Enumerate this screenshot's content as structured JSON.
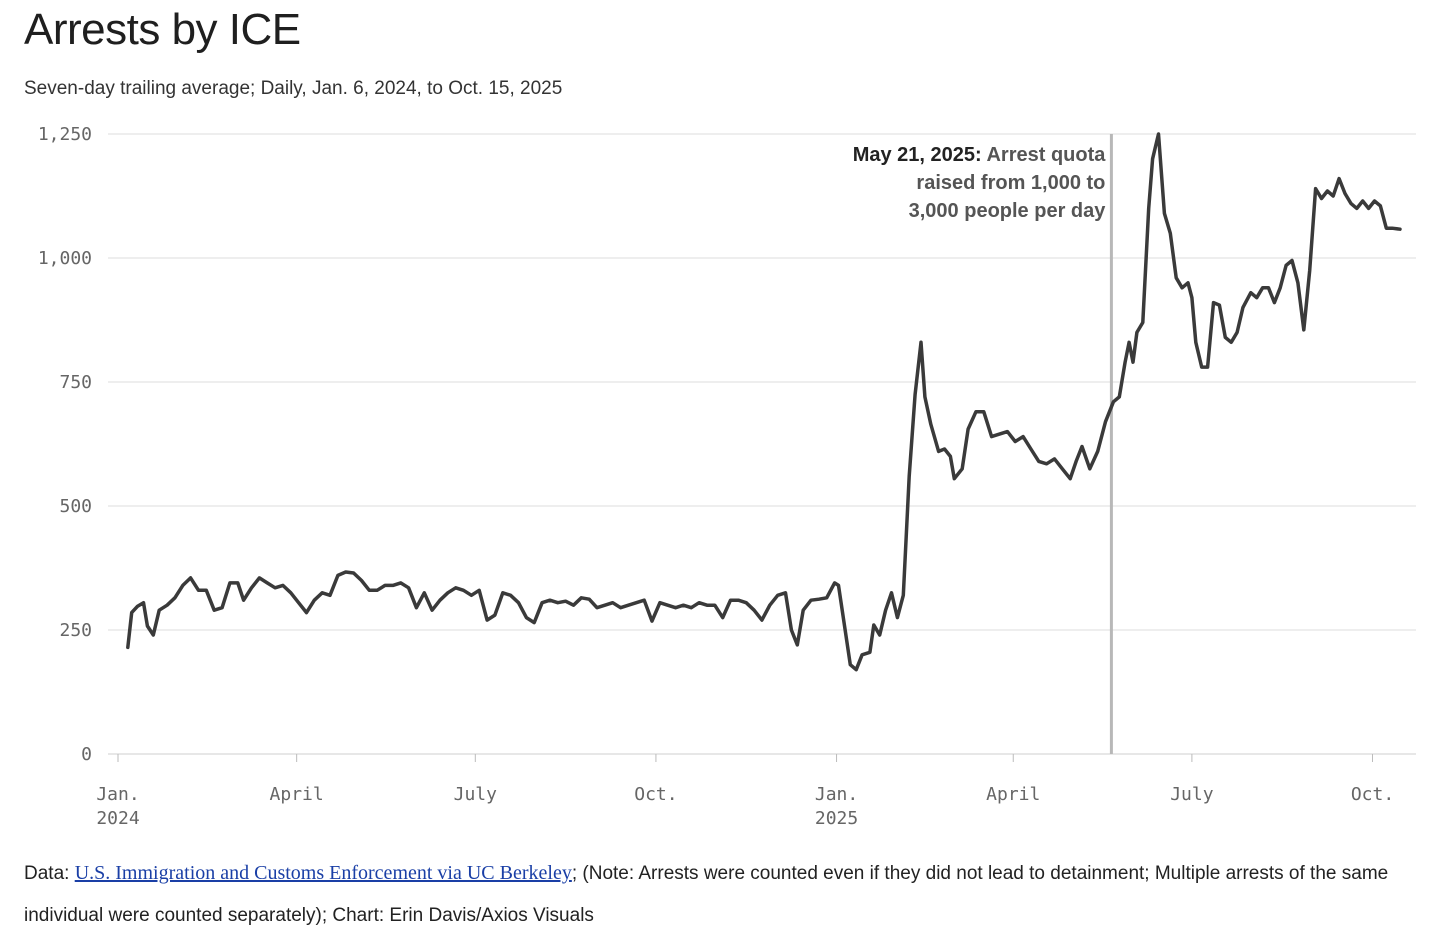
{
  "title": "Arrests by ICE",
  "subtitle": "Seven-day trailing average; Daily, Jan. 6, 2024, to Oct. 15, 2025",
  "footer": {
    "data_prefix": "Data: ",
    "source_link": "U.S. Immigration and Customs Enforcement via UC Berkeley",
    "note": "; (Note: Arrests were counted even if they did not lead to detainment; Multiple arrests of the same individual were counted separately); Chart: Erin Davis/Axios Visuals"
  },
  "colors": {
    "line": "#3a3a3a",
    "grid": "#dcdcdc",
    "marker": "#b8b8b8",
    "axis": "#cfcfcf"
  },
  "chart_data": {
    "type": "line",
    "title": "Arrests by ICE",
    "xlabel": "",
    "ylabel": "",
    "ylim": [
      0,
      1250
    ],
    "yticks": [
      0,
      250,
      500,
      750,
      1000,
      1250
    ],
    "ytick_labels": [
      "0",
      "250",
      "500",
      "750",
      "1,000",
      "1,250"
    ],
    "x_domain": [
      "2024-01-01",
      "2025-10-15"
    ],
    "xticks": [
      {
        "date": "2024-01-01",
        "label": "Jan.",
        "label2": "2024"
      },
      {
        "date": "2024-04-01",
        "label": "April",
        "label2": ""
      },
      {
        "date": "2024-07-01",
        "label": "July",
        "label2": ""
      },
      {
        "date": "2024-10-01",
        "label": "Oct.",
        "label2": ""
      },
      {
        "date": "2025-01-01",
        "label": "Jan.",
        "label2": "2025"
      },
      {
        "date": "2025-04-01",
        "label": "April",
        "label2": ""
      },
      {
        "date": "2025-07-01",
        "label": "July",
        "label2": ""
      },
      {
        "date": "2025-10-01",
        "label": "Oct.",
        "label2": ""
      }
    ],
    "annotation": {
      "date": "2025-05-21",
      "bold": "May 21, 2025:",
      "lines": [
        "Arrest quota",
        "raised from 1,000 to",
        "3,000 people per day"
      ]
    },
    "series": [
      {
        "name": "Arrests (7-day trailing avg)",
        "points": [
          [
            "2024-01-06",
            215
          ],
          [
            "2024-01-08",
            285
          ],
          [
            "2024-01-11",
            298
          ],
          [
            "2024-01-14",
            305
          ],
          [
            "2024-01-16",
            258
          ],
          [
            "2024-01-19",
            240
          ],
          [
            "2024-01-22",
            290
          ],
          [
            "2024-01-26",
            300
          ],
          [
            "2024-01-30",
            315
          ],
          [
            "2024-02-03",
            340
          ],
          [
            "2024-02-07",
            355
          ],
          [
            "2024-02-11",
            330
          ],
          [
            "2024-02-15",
            330
          ],
          [
            "2024-02-19",
            290
          ],
          [
            "2024-02-23",
            295
          ],
          [
            "2024-02-27",
            345
          ],
          [
            "2024-03-02",
            345
          ],
          [
            "2024-03-05",
            310
          ],
          [
            "2024-03-09",
            335
          ],
          [
            "2024-03-13",
            355
          ],
          [
            "2024-03-17",
            345
          ],
          [
            "2024-03-21",
            335
          ],
          [
            "2024-03-25",
            340
          ],
          [
            "2024-03-29",
            325
          ],
          [
            "2024-04-02",
            305
          ],
          [
            "2024-04-06",
            285
          ],
          [
            "2024-04-10",
            310
          ],
          [
            "2024-04-14",
            325
          ],
          [
            "2024-04-18",
            320
          ],
          [
            "2024-04-22",
            360
          ],
          [
            "2024-04-26",
            367
          ],
          [
            "2024-04-30",
            365
          ],
          [
            "2024-05-04",
            350
          ],
          [
            "2024-05-08",
            330
          ],
          [
            "2024-05-12",
            330
          ],
          [
            "2024-05-16",
            340
          ],
          [
            "2024-05-20",
            340
          ],
          [
            "2024-05-24",
            345
          ],
          [
            "2024-05-28",
            335
          ],
          [
            "2024-06-01",
            295
          ],
          [
            "2024-06-05",
            325
          ],
          [
            "2024-06-09",
            290
          ],
          [
            "2024-06-13",
            310
          ],
          [
            "2024-06-17",
            325
          ],
          [
            "2024-06-21",
            335
          ],
          [
            "2024-06-25",
            330
          ],
          [
            "2024-06-29",
            320
          ],
          [
            "2024-07-03",
            330
          ],
          [
            "2024-07-07",
            270
          ],
          [
            "2024-07-11",
            280
          ],
          [
            "2024-07-15",
            325
          ],
          [
            "2024-07-19",
            320
          ],
          [
            "2024-07-23",
            305
          ],
          [
            "2024-07-27",
            275
          ],
          [
            "2024-07-31",
            265
          ],
          [
            "2024-08-04",
            305
          ],
          [
            "2024-08-08",
            310
          ],
          [
            "2024-08-12",
            305
          ],
          [
            "2024-08-16",
            308
          ],
          [
            "2024-08-20",
            300
          ],
          [
            "2024-08-24",
            315
          ],
          [
            "2024-08-28",
            312
          ],
          [
            "2024-09-01",
            295
          ],
          [
            "2024-09-05",
            300
          ],
          [
            "2024-09-09",
            305
          ],
          [
            "2024-09-13",
            295
          ],
          [
            "2024-09-17",
            300
          ],
          [
            "2024-09-21",
            305
          ],
          [
            "2024-09-25",
            310
          ],
          [
            "2024-09-29",
            268
          ],
          [
            "2024-10-03",
            305
          ],
          [
            "2024-10-07",
            300
          ],
          [
            "2024-10-11",
            295
          ],
          [
            "2024-10-15",
            300
          ],
          [
            "2024-10-19",
            295
          ],
          [
            "2024-10-23",
            305
          ],
          [
            "2024-10-27",
            300
          ],
          [
            "2024-10-31",
            300
          ],
          [
            "2024-11-04",
            275
          ],
          [
            "2024-11-08",
            310
          ],
          [
            "2024-11-12",
            310
          ],
          [
            "2024-11-16",
            305
          ],
          [
            "2024-11-20",
            290
          ],
          [
            "2024-11-24",
            270
          ],
          [
            "2024-11-28",
            300
          ],
          [
            "2024-12-02",
            320
          ],
          [
            "2024-12-06",
            325
          ],
          [
            "2024-12-09",
            250
          ],
          [
            "2024-12-12",
            220
          ],
          [
            "2024-12-15",
            290
          ],
          [
            "2024-12-19",
            310
          ],
          [
            "2024-12-23",
            312
          ],
          [
            "2024-12-27",
            315
          ],
          [
            "2024-12-31",
            345
          ],
          [
            "2025-01-02",
            340
          ],
          [
            "2025-01-05",
            260
          ],
          [
            "2025-01-08",
            180
          ],
          [
            "2025-01-11",
            170
          ],
          [
            "2025-01-14",
            200
          ],
          [
            "2025-01-18",
            205
          ],
          [
            "2025-01-20",
            260
          ],
          [
            "2025-01-23",
            240
          ],
          [
            "2025-01-26",
            290
          ],
          [
            "2025-01-29",
            325
          ],
          [
            "2025-02-01",
            275
          ],
          [
            "2025-02-04",
            320
          ],
          [
            "2025-02-07",
            560
          ],
          [
            "2025-02-10",
            725
          ],
          [
            "2025-02-13",
            830
          ],
          [
            "2025-02-15",
            720
          ],
          [
            "2025-02-18",
            665
          ],
          [
            "2025-02-22",
            610
          ],
          [
            "2025-02-25",
            615
          ],
          [
            "2025-02-28",
            600
          ],
          [
            "2025-03-02",
            555
          ],
          [
            "2025-03-06",
            575
          ],
          [
            "2025-03-09",
            655
          ],
          [
            "2025-03-13",
            690
          ],
          [
            "2025-03-17",
            690
          ],
          [
            "2025-03-21",
            640
          ],
          [
            "2025-03-25",
            645
          ],
          [
            "2025-03-29",
            650
          ],
          [
            "2025-04-02",
            630
          ],
          [
            "2025-04-06",
            640
          ],
          [
            "2025-04-10",
            615
          ],
          [
            "2025-04-14",
            590
          ],
          [
            "2025-04-18",
            585
          ],
          [
            "2025-04-22",
            595
          ],
          [
            "2025-04-26",
            575
          ],
          [
            "2025-04-30",
            555
          ],
          [
            "2025-05-03",
            590
          ],
          [
            "2025-05-06",
            620
          ],
          [
            "2025-05-10",
            575
          ],
          [
            "2025-05-14",
            610
          ],
          [
            "2025-05-18",
            670
          ],
          [
            "2025-05-22",
            710
          ],
          [
            "2025-05-25",
            720
          ],
          [
            "2025-05-28",
            790
          ],
          [
            "2025-05-30",
            830
          ],
          [
            "2025-06-01",
            790
          ],
          [
            "2025-06-03",
            850
          ],
          [
            "2025-06-06",
            870
          ],
          [
            "2025-06-09",
            1100
          ],
          [
            "2025-06-11",
            1200
          ],
          [
            "2025-06-14",
            1250
          ],
          [
            "2025-06-17",
            1090
          ],
          [
            "2025-06-20",
            1050
          ],
          [
            "2025-06-23",
            960
          ],
          [
            "2025-06-26",
            940
          ],
          [
            "2025-06-29",
            950
          ],
          [
            "2025-07-01",
            920
          ],
          [
            "2025-07-03",
            830
          ],
          [
            "2025-07-06",
            780
          ],
          [
            "2025-07-09",
            780
          ],
          [
            "2025-07-12",
            910
          ],
          [
            "2025-07-15",
            905
          ],
          [
            "2025-07-18",
            840
          ],
          [
            "2025-07-21",
            830
          ],
          [
            "2025-07-24",
            850
          ],
          [
            "2025-07-27",
            900
          ],
          [
            "2025-07-31",
            930
          ],
          [
            "2025-08-03",
            920
          ],
          [
            "2025-08-06",
            940
          ],
          [
            "2025-08-09",
            940
          ],
          [
            "2025-08-12",
            910
          ],
          [
            "2025-08-15",
            940
          ],
          [
            "2025-08-18",
            985
          ],
          [
            "2025-08-21",
            995
          ],
          [
            "2025-08-24",
            950
          ],
          [
            "2025-08-27",
            855
          ],
          [
            "2025-08-30",
            975
          ],
          [
            "2025-09-02",
            1140
          ],
          [
            "2025-09-05",
            1120
          ],
          [
            "2025-09-08",
            1135
          ],
          [
            "2025-09-11",
            1125
          ],
          [
            "2025-09-14",
            1160
          ],
          [
            "2025-09-17",
            1130
          ],
          [
            "2025-09-20",
            1110
          ],
          [
            "2025-09-23",
            1100
          ],
          [
            "2025-09-26",
            1115
          ],
          [
            "2025-09-29",
            1100
          ],
          [
            "2025-10-02",
            1115
          ],
          [
            "2025-10-05",
            1105
          ],
          [
            "2025-10-08",
            1060
          ],
          [
            "2025-10-11",
            1060
          ],
          [
            "2025-10-15",
            1058
          ]
        ]
      }
    ]
  }
}
